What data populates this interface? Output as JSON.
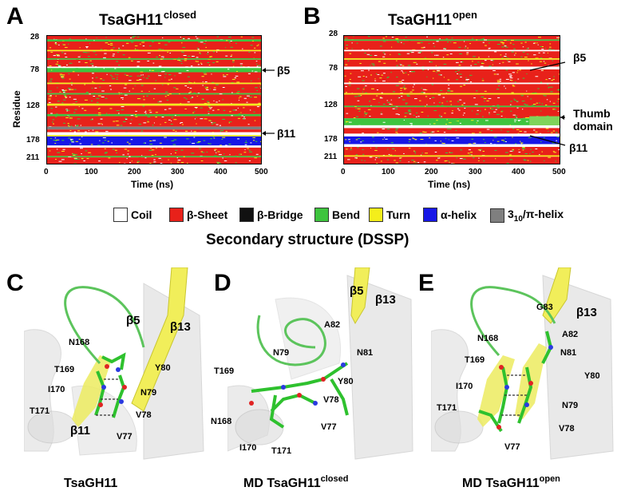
{
  "panels": {
    "A": {
      "letter": "A",
      "title": "TsaGH11",
      "title_sup": "closed"
    },
    "B": {
      "letter": "B",
      "title": "TsaGH11",
      "title_sup": "open"
    },
    "C": {
      "letter": "C"
    },
    "D": {
      "letter": "D"
    },
    "E": {
      "letter": "E"
    }
  },
  "axes": {
    "ylabel": "Residue",
    "xlabel": "Time (ns)",
    "yticks": [
      "28",
      "78",
      "128",
      "178",
      "211"
    ],
    "xticks": [
      "0",
      "100",
      "200",
      "300",
      "400",
      "500"
    ]
  },
  "annotations_A": {
    "b5": "β5",
    "b11": "β11"
  },
  "annotations_B": {
    "b5": "β5",
    "thumb": "Thumb\ndomain",
    "b11": "β11"
  },
  "legend": {
    "items": [
      {
        "label": "Coil",
        "color": "#ffffff"
      },
      {
        "label": "β-Sheet",
        "color": "#e8211a"
      },
      {
        "label": "β-Bridge",
        "color": "#111111"
      },
      {
        "label": "Bend",
        "color": "#3ec43e"
      },
      {
        "label": "Turn",
        "color": "#f4ee1b"
      },
      {
        "label": "α-helix",
        "color": "#1717e6"
      },
      {
        "label_main": "3",
        "label_sub": "10",
        "label_rest": "/π-helix",
        "color": "#7f7f7f"
      }
    ],
    "title": "Secondary structure (DSSP)"
  },
  "structures": {
    "C": {
      "caption": "TsaGH11",
      "caption_sup": "",
      "labels": {
        "b5": "β5",
        "b13": "β13",
        "b11": "β11",
        "N168": "N168",
        "T169": "T169",
        "I170": "I170",
        "T171": "T171",
        "Y80": "Y80",
        "N79": "N79",
        "V78": "V78",
        "V77": "V77"
      }
    },
    "D": {
      "caption": "MD TsaGH11",
      "caption_sup": "closed",
      "labels": {
        "b5": "β5",
        "b13": "β13",
        "A82": "A82",
        "N81": "N81",
        "N79": "N79",
        "Y80": "Y80",
        "T169": "T169",
        "V78": "V78",
        "N168": "N168",
        "V77": "V77",
        "I170": "I170",
        "T171": "T171"
      }
    },
    "E": {
      "caption": "MD TsaGH11",
      "caption_sup": "open",
      "labels": {
        "G83": "G83",
        "b13": "β13",
        "A82": "A82",
        "N168": "N168",
        "N81": "N81",
        "T169": "T169",
        "Y80": "Y80",
        "I170": "I170",
        "N79": "N79",
        "T171": "T171",
        "V78": "V78",
        "V77": "V77"
      }
    }
  },
  "chart_data": [
    {
      "type": "heatmap",
      "title": "TsaGH11 closed",
      "xlabel": "Time (ns)",
      "ylabel": "Residue",
      "xlim": [
        0,
        500
      ],
      "ylim": [
        28,
        211
      ],
      "categories": [
        "Coil",
        "β-Sheet",
        "β-Bridge",
        "Bend",
        "Turn",
        "α-helix",
        "3₁₀/π-helix"
      ],
      "bands": [
        {
          "from": 28,
          "to": 33,
          "state": "β-Sheet"
        },
        {
          "from": 33,
          "to": 36,
          "state": "Bend"
        },
        {
          "from": 36,
          "to": 48,
          "state": "β-Sheet"
        },
        {
          "from": 48,
          "to": 50,
          "state": "Turn"
        },
        {
          "from": 50,
          "to": 60,
          "state": "β-Sheet"
        },
        {
          "from": 60,
          "to": 62,
          "state": "Bend"
        },
        {
          "from": 62,
          "to": 72,
          "state": "β-Sheet"
        },
        {
          "from": 72,
          "to": 74,
          "state": "Coil"
        },
        {
          "from": 74,
          "to": 80,
          "state": "Bend"
        },
        {
          "from": 80,
          "to": 95,
          "state": "β-Sheet"
        },
        {
          "from": 95,
          "to": 97,
          "state": "Turn"
        },
        {
          "from": 97,
          "to": 110,
          "state": "β-Sheet"
        },
        {
          "from": 110,
          "to": 112,
          "state": "Bend"
        },
        {
          "from": 112,
          "to": 125,
          "state": "β-Sheet"
        },
        {
          "from": 125,
          "to": 128,
          "state": "Turn"
        },
        {
          "from": 128,
          "to": 140,
          "state": "β-Sheet"
        },
        {
          "from": 140,
          "to": 143,
          "state": "Bend"
        },
        {
          "from": 143,
          "to": 158,
          "state": "β-Sheet"
        },
        {
          "from": 158,
          "to": 162,
          "state": "3₁₀/π-helix"
        },
        {
          "from": 162,
          "to": 166,
          "state": "β-Sheet"
        },
        {
          "from": 166,
          "to": 170,
          "state": "Coil"
        },
        {
          "from": 170,
          "to": 172,
          "state": "Turn"
        },
        {
          "from": 172,
          "to": 185,
          "state": "α-helix"
        },
        {
          "from": 185,
          "to": 188,
          "state": "Coil"
        },
        {
          "from": 188,
          "to": 200,
          "state": "β-Sheet"
        },
        {
          "from": 200,
          "to": 202,
          "state": "Bend"
        },
        {
          "from": 202,
          "to": 211,
          "state": "β-Sheet"
        }
      ]
    },
    {
      "type": "heatmap",
      "title": "TsaGH11 open",
      "xlabel": "Time (ns)",
      "ylabel": "Residue",
      "xlim": [
        0,
        500
      ],
      "ylim": [
        28,
        211
      ],
      "categories": [
        "Coil",
        "β-Sheet",
        "β-Bridge",
        "Bend",
        "Turn",
        "α-helix",
        "3₁₀/π-helix"
      ],
      "bands": [
        {
          "from": 28,
          "to": 33,
          "state": "β-Sheet"
        },
        {
          "from": 33,
          "to": 35,
          "state": "Bend"
        },
        {
          "from": 35,
          "to": 48,
          "state": "β-Sheet"
        },
        {
          "from": 48,
          "to": 50,
          "state": "Coil"
        },
        {
          "from": 50,
          "to": 60,
          "state": "β-Sheet"
        },
        {
          "from": 60,
          "to": 62,
          "state": "Turn"
        },
        {
          "from": 62,
          "to": 72,
          "state": "β-Sheet"
        },
        {
          "from": 72,
          "to": 76,
          "state": "Coil"
        },
        {
          "from": 76,
          "to": 95,
          "state": "β-Sheet"
        },
        {
          "from": 95,
          "to": 97,
          "state": "Coil"
        },
        {
          "from": 97,
          "to": 110,
          "state": "β-Sheet"
        },
        {
          "from": 110,
          "to": 112,
          "state": "Turn"
        },
        {
          "from": 112,
          "to": 128,
          "state": "β-Sheet"
        },
        {
          "from": 128,
          "to": 130,
          "state": "Bend"
        },
        {
          "from": 130,
          "to": 146,
          "state": "β-Sheet"
        },
        {
          "from": 146,
          "to": 156,
          "state": "Bend"
        },
        {
          "from": 156,
          "to": 160,
          "state": "Coil"
        },
        {
          "from": 160,
          "to": 168,
          "state": "β-Sheet"
        },
        {
          "from": 168,
          "to": 172,
          "state": "Coil"
        },
        {
          "from": 172,
          "to": 183,
          "state": "α-helix"
        },
        {
          "from": 183,
          "to": 187,
          "state": "Coil"
        },
        {
          "from": 187,
          "to": 199,
          "state": "β-Sheet"
        },
        {
          "from": 199,
          "to": 201,
          "state": "Turn"
        },
        {
          "from": 201,
          "to": 211,
          "state": "β-Sheet"
        }
      ]
    }
  ]
}
